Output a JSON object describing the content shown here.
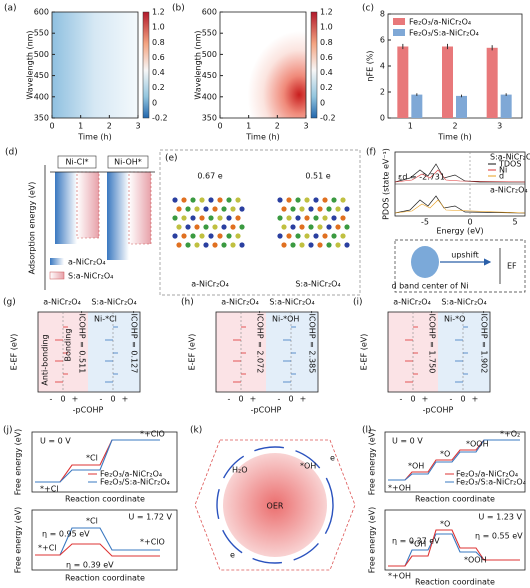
{
  "a": {
    "label": "(a)",
    "ylabel": "Wavelength (nm)",
    "xlabel": "Time (h)",
    "xticks": [
      0,
      1,
      2,
      3
    ],
    "yticks": [
      350,
      400,
      450,
      500,
      550,
      600
    ],
    "cbar": [
      "1.2",
      "1.0",
      "0.8",
      "0.6",
      "0.4",
      "0.2",
      "0",
      "-0.2"
    ]
  },
  "b": {
    "label": "(b)",
    "ylabel": "Wavelength (nm)",
    "xlabel": "Time (h)",
    "xticks": [
      0,
      1,
      2,
      3
    ],
    "yticks": [
      350,
      400,
      450,
      500,
      550,
      600
    ],
    "cbar": [
      "1.2",
      "1.0",
      "0.8",
      "0.6",
      "0.4",
      "0.2",
      "0",
      "-0.2"
    ]
  },
  "c": {
    "label": "(c)",
    "ylabel": "ηFE (%)",
    "xlabel": "Time (h)",
    "categories": [
      1,
      2,
      3
    ],
    "ylim": [
      0,
      8
    ],
    "yticks": [
      0,
      2,
      4,
      6,
      8
    ],
    "series": [
      {
        "name": "Fe₂O₃/a-NiCr₂O₄",
        "color": "#e8787a",
        "values": [
          5.5,
          5.5,
          5.4
        ],
        "errors": [
          0.2,
          0.2,
          0.2
        ]
      },
      {
        "name": "Fe₂O₃/S:a-NiCr₂O₄",
        "color": "#7fa8d6",
        "values": [
          1.8,
          1.7,
          1.8
        ],
        "errors": [
          0.1,
          0.1,
          0.1
        ]
      }
    ]
  },
  "d": {
    "label": "(d)",
    "columns": [
      "Ni-Cl*",
      "Ni-OH*"
    ],
    "ylabel": "Adsorption energy (eV)",
    "legend": [
      "a-NiCr₂O₄",
      "S:a-NiCr₂O₄"
    ]
  },
  "e": {
    "label": "(e)",
    "charges": [
      "0.67 e",
      "0.51 e"
    ],
    "names": [
      "a-NiCr₂O₄",
      "S:a-NiCr₂O₄"
    ]
  },
  "f": {
    "label": "(f)",
    "top": "S:a-NiCr₂O₄",
    "legend": [
      "TDOS",
      "Ni",
      "d"
    ],
    "ed": "εd = -2.731",
    "bottom": "a-NiCr₂O₄",
    "xticks": [
      -5,
      0,
      5
    ],
    "xlabel": "Energy (eV)",
    "ylabel": "PDOS (state eV⁻¹)",
    "shift": "upshift",
    "center": "d band center of Ni",
    "ef": "EF"
  },
  "g": {
    "label": "(g)",
    "headers": [
      "a-NiCr₂O₄",
      "S:a-NiCr₂O₄"
    ],
    "ylabel": "E-EF (eV)",
    "bond": "Ni-*Cl",
    "icohp": [
      "-ICOHP = 0.511",
      "-ICOHP = 0.127"
    ],
    "anti": "Anti-bonding",
    "bonding": "Bonding",
    "xticks": [
      "-",
      "0",
      "+"
    ],
    "xlabel": "-pCOHP"
  },
  "h": {
    "label": "(h)",
    "headers": [
      "a-NiCr₂O₄",
      "S:a-NiCr₂O₄"
    ],
    "ylabel": "E-EF (eV)",
    "bond": "Ni-*OH",
    "icohp": [
      "-ICOHP = 2.072",
      "-ICOHP = 2.385"
    ],
    "xticks": [
      "-",
      "0",
      "+"
    ],
    "xlabel": "-pCOHP"
  },
  "i": {
    "label": "(i)",
    "headers": [
      "a-NiCr₂O₄",
      "S:a-NiCr₂O₄"
    ],
    "ylabel": "E-EF (eV)",
    "bond": "Ni-*O",
    "icohp": [
      "-ICOHP = 1.750",
      "-ICOHP = 1.902"
    ],
    "xticks": [
      "-",
      "0",
      "+"
    ],
    "xlabel": "-pCOHP"
  },
  "j": {
    "label": "(j)",
    "ylabel": "Free energy (eV)",
    "xlabel": "Reaction coordinate",
    "legend": [
      "Fe₂O₃/a-NiCr₂O₄",
      "Fe₂O₃/S:a-NiCr₂O₄"
    ],
    "top": {
      "U": "U = 0 V",
      "states": [
        "*+Cl",
        "*Cl",
        "*+ClO"
      ]
    },
    "bottom": {
      "U": "U = 1.72 V",
      "states": [
        "*+Cl",
        "*Cl",
        "*+ClO"
      ],
      "eta": [
        "η = 0.95 eV",
        "η = 0.39 eV"
      ]
    }
  },
  "k": {
    "label": "(k)",
    "center": "OER",
    "species": [
      "H₂O",
      "e",
      "*OH",
      "e"
    ]
  },
  "l": {
    "label": "(l)",
    "ylabel": "Free energy (eV)",
    "xlabel": "Reaction coordinate",
    "legend": [
      "Fe₂O₃/a-NiCr₂O₄",
      "Fe₂O₃/S:a-NiCr₂O₄"
    ],
    "top": {
      "U": "U = 0 V",
      "states": [
        "*+OH",
        "*OH",
        "*O",
        "*OOH",
        "*+O₂"
      ]
    },
    "bottom": {
      "U": "U = 1.23 V",
      "states": [
        "*+OH",
        "*OH",
        "*O",
        "*OOH"
      ],
      "eta": [
        "η = 0.37 eV",
        "η = 0.55 eV"
      ]
    }
  }
}
